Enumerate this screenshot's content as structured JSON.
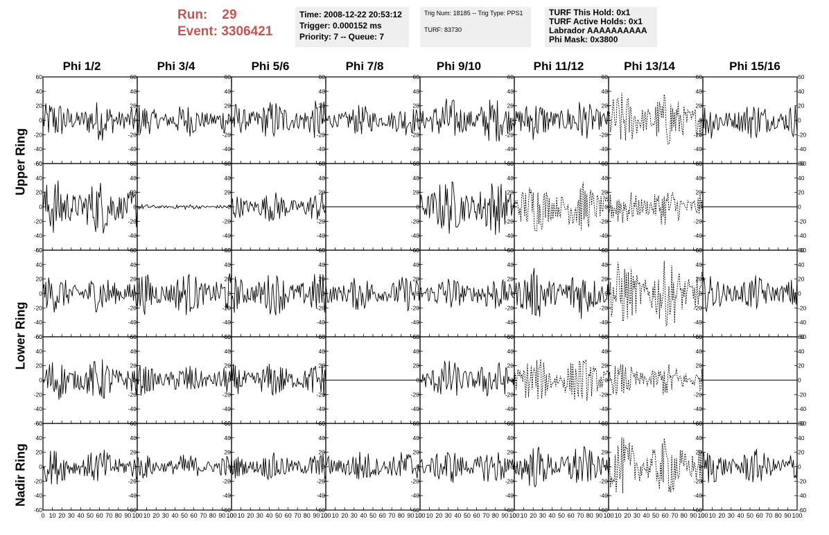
{
  "run": {
    "run_label": "Run:",
    "run_value": "29",
    "event_label": "Event:",
    "event_value": "3306421"
  },
  "info_time": {
    "time": "Time: 2008-12-22 20:53:12",
    "trigger": "Trigger: 0.000152 ms",
    "priority": "Priority: 7 -- Queue: 7"
  },
  "info_trig": {
    "trig": "Trig Num: 18185 -- Trig Type: PPS1",
    "turf": "TURF: 83730"
  },
  "info_turf": {
    "hold": "TURF This Hold: 0x1",
    "active": "TURF Active Holds: 0x1",
    "labrador": "Labrador AAAAAAAAAA",
    "phimask": "Phi Mask: 0x3800"
  },
  "columns": [
    "Phi 1/2",
    "Phi 3/4",
    "Phi 5/6",
    "Phi 7/8",
    "Phi 9/10",
    "Phi 11/12",
    "Phi 13/14",
    "Phi 15/16"
  ],
  "ring_labels": [
    {
      "label": "Upper Ring",
      "rows": [
        0,
        1
      ]
    },
    {
      "label": "Lower Ring",
      "rows": [
        2,
        3
      ]
    },
    {
      "label": "Nadir Ring",
      "rows": [
        4
      ]
    }
  ],
  "chart_data": {
    "type": "line",
    "title": "",
    "xlim": [
      0,
      100
    ],
    "ylim": [
      -60,
      60
    ],
    "y_ticks": [
      "60",
      "40",
      "20",
      "0",
      "-20",
      "-40",
      "-60"
    ],
    "x_ticks": [
      "0",
      "10",
      "20",
      "30",
      "40",
      "50",
      "60",
      "70",
      "80",
      "90",
      "100"
    ],
    "grid": false,
    "panels": [
      [
        {
          "amp": 16,
          "dash": false,
          "flat": false
        },
        {
          "amp": 13,
          "dash": false,
          "flat": false
        },
        {
          "amp": 16,
          "dash": false,
          "flat": false
        },
        {
          "amp": 12,
          "dash": false,
          "flat": false
        },
        {
          "amp": 18,
          "dash": false,
          "flat": false
        },
        {
          "amp": 16,
          "dash": false,
          "flat": false
        },
        {
          "amp": 22,
          "dash": true,
          "flat": false
        },
        {
          "amp": 15,
          "dash": false,
          "flat": false
        }
      ],
      [
        {
          "amp": 22,
          "dash": false,
          "flat": false
        },
        {
          "amp": 2,
          "dash": false,
          "flat": false
        },
        {
          "amp": 12,
          "dash": false,
          "flat": false
        },
        {
          "amp": 0,
          "dash": false,
          "flat": true
        },
        {
          "amp": 22,
          "dash": false,
          "flat": false
        },
        {
          "amp": 20,
          "dash": true,
          "flat": false
        },
        {
          "amp": 15,
          "dash": true,
          "flat": false
        },
        {
          "amp": 0,
          "dash": false,
          "flat": true
        }
      ],
      [
        {
          "amp": 15,
          "dash": false,
          "flat": false
        },
        {
          "amp": 17,
          "dash": false,
          "flat": false
        },
        {
          "amp": 17,
          "dash": false,
          "flat": false
        },
        {
          "amp": 14,
          "dash": false,
          "flat": false
        },
        {
          "amp": 14,
          "dash": false,
          "flat": false
        },
        {
          "amp": 20,
          "dash": false,
          "flat": false
        },
        {
          "amp": 26,
          "dash": true,
          "flat": false
        },
        {
          "amp": 14,
          "dash": false,
          "flat": false
        }
      ],
      [
        {
          "amp": 17,
          "dash": false,
          "flat": false
        },
        {
          "amp": 12,
          "dash": false,
          "flat": false
        },
        {
          "amp": 14,
          "dash": false,
          "flat": false
        },
        {
          "amp": 0,
          "dash": false,
          "flat": true
        },
        {
          "amp": 16,
          "dash": false,
          "flat": false
        },
        {
          "amp": 18,
          "dash": true,
          "flat": false
        },
        {
          "amp": 13,
          "dash": true,
          "flat": false
        },
        {
          "amp": 0,
          "dash": false,
          "flat": true
        }
      ],
      [
        {
          "amp": 14,
          "dash": false,
          "flat": false
        },
        {
          "amp": 10,
          "dash": false,
          "flat": false
        },
        {
          "amp": 11,
          "dash": false,
          "flat": false
        },
        {
          "amp": 13,
          "dash": false,
          "flat": false
        },
        {
          "amp": 14,
          "dash": false,
          "flat": false
        },
        {
          "amp": 17,
          "dash": false,
          "flat": false
        },
        {
          "amp": 23,
          "dash": true,
          "flat": false
        },
        {
          "amp": 14,
          "dash": false,
          "flat": false
        }
      ]
    ]
  }
}
